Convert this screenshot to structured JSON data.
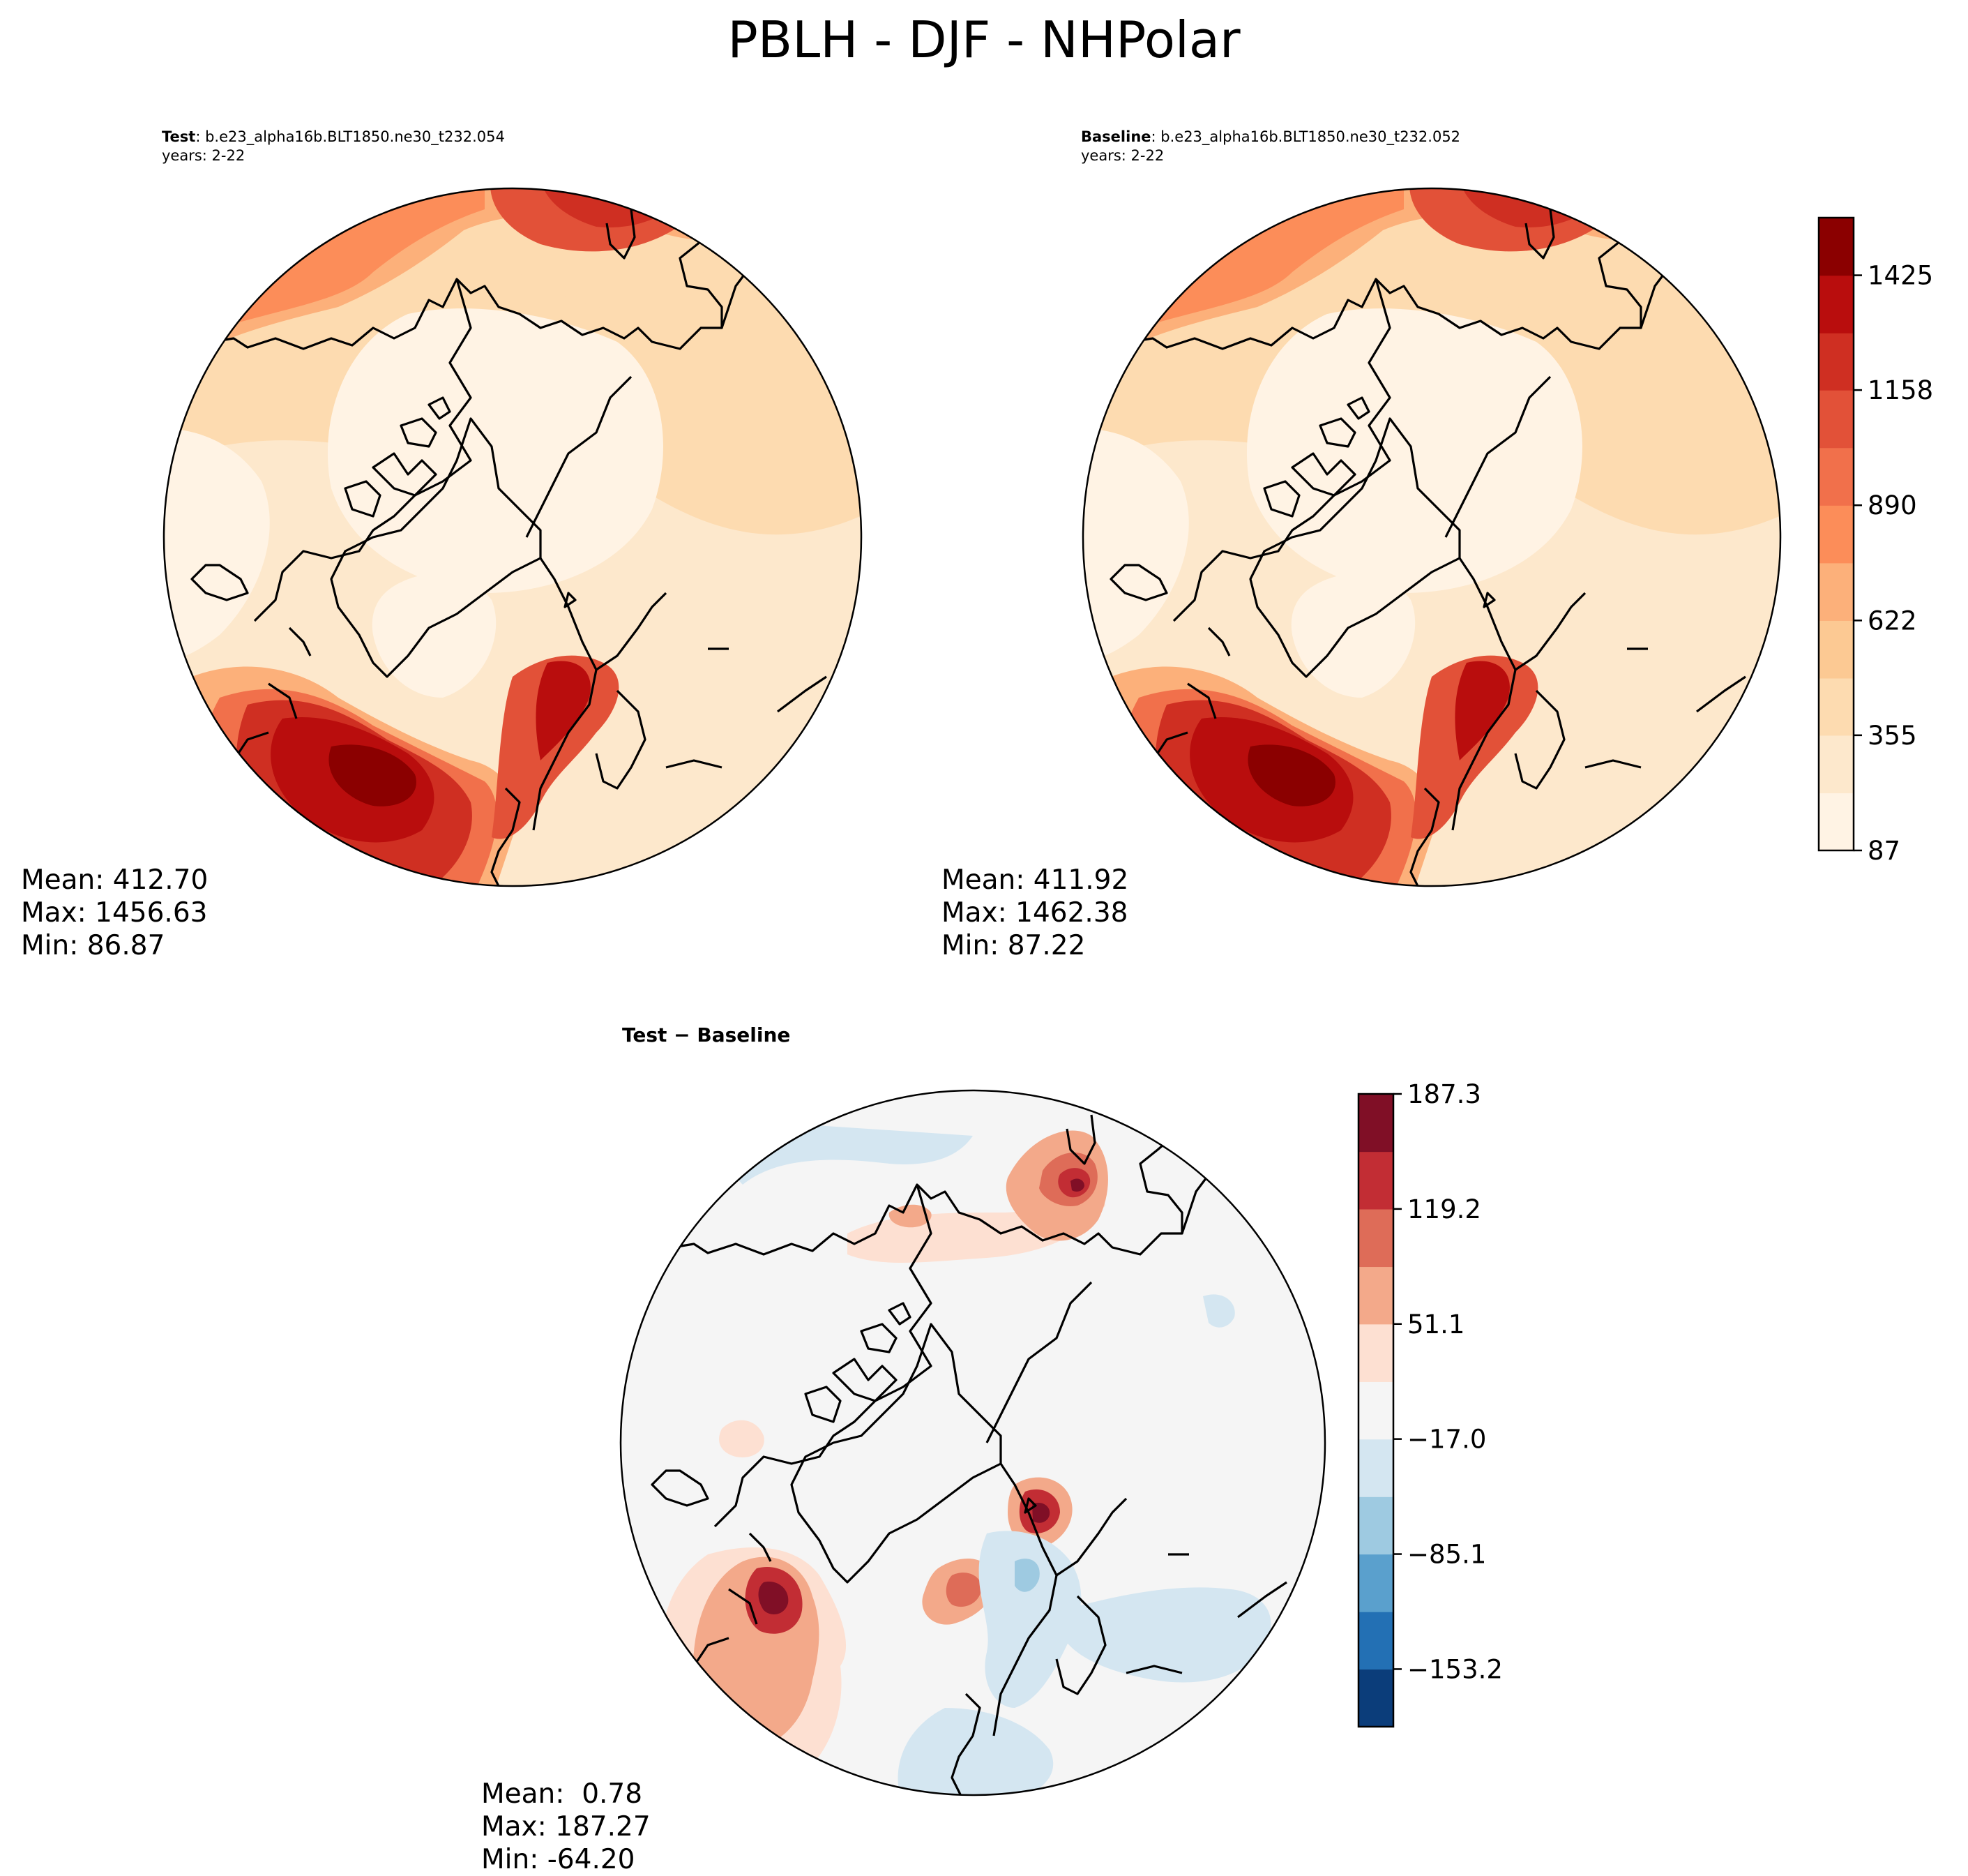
{
  "figure": {
    "title": "PBLH - DJF - NHPolar"
  },
  "panels": [
    {
      "id": "test",
      "title_bold": "Test",
      "title_rest": ": b.e23_alpha16b.BLT1850.ne30_t232.054",
      "years": "years: 2-22",
      "stats": {
        "mean": "Mean: 412.70",
        "max": "Max: 1456.63",
        "min": "Min: 86.87"
      }
    },
    {
      "id": "baseline",
      "title_bold": "Baseline",
      "title_rest": ": b.e23_alpha16b.BLT1850.ne30_t232.052",
      "years": "years: 2-22",
      "stats": {
        "mean": "Mean: 411.92",
        "max": "Max: 1462.38",
        "min": "Min: 87.22"
      }
    },
    {
      "id": "diff",
      "title": "Test − Baseline",
      "stats": {
        "mean": "Mean:  0.78",
        "max": "Max: 187.27",
        "min": "Min: -64.20"
      }
    }
  ],
  "chart_data": [
    {
      "type": "heatmap",
      "title": "PBLH - DJF - NHPolar",
      "projection": "north polar stereographic",
      "colorbar": {
        "colormap": "OrRd",
        "levels": [
          87,
          221,
          355,
          488,
          622,
          756,
          890,
          1024,
          1158,
          1291,
          1425,
          1559
        ],
        "tick_labels": [
          "87",
          "355",
          "622",
          "890",
          "1158",
          "1425"
        ],
        "colors": [
          "#fff3e4",
          "#fde8cc",
          "#fddbb0",
          "#fcc993",
          "#fcb07a",
          "#fc8d59",
          "#f1704b",
          "#e25138",
          "#cf2f22",
          "#b90d0d",
          "#8b0000"
        ]
      },
      "series": [
        {
          "name": "Test",
          "mean": 412.7,
          "max": 1456.63,
          "min": 86.87
        },
        {
          "name": "Baseline",
          "mean": 411.92,
          "max": 1462.38,
          "min": 87.22
        }
      ]
    },
    {
      "type": "heatmap",
      "title": "Test − Baseline",
      "projection": "north polar stereographic",
      "colorbar": {
        "colormap": "RdBu_r",
        "levels": [
          -187.3,
          -153.2,
          -119.2,
          -85.1,
          -51.1,
          -17.0,
          17.0,
          51.1,
          85.1,
          119.2,
          153.2,
          187.3
        ],
        "tick_labels": [
          "−153.2",
          "−85.1",
          "−17.0",
          "51.1",
          "119.2",
          "187.3"
        ],
        "colors": [
          "#0b3d7a",
          "#2370b4",
          "#5aa0cd",
          "#9ecae1",
          "#d4e6f1",
          "#f5f5f5",
          "#fde0d2",
          "#f3a98a",
          "#de6c58",
          "#c22d34",
          "#800f26"
        ]
      },
      "series": [
        {
          "name": "Test − Baseline",
          "mean": 0.78,
          "max": 187.27,
          "min": -64.2
        }
      ]
    }
  ]
}
